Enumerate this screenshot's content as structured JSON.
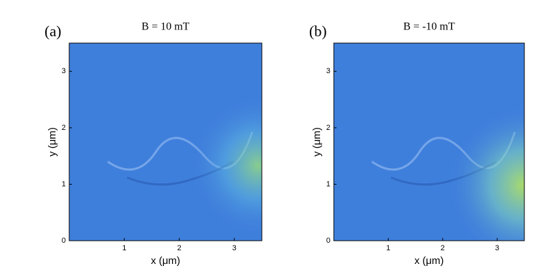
{
  "chart_data": [
    {
      "type": "image",
      "panel_label": "(a)",
      "title": "B = 10 mT",
      "xlabel": "x (μm)",
      "ylabel": "y (μm)",
      "xlim": [
        0,
        3.5
      ],
      "ylim": [
        0,
        3.5
      ],
      "xticks": [
        1,
        2,
        3
      ],
      "yticks": [
        0,
        1,
        2,
        3
      ]
    },
    {
      "type": "image",
      "panel_label": "(b)",
      "title": "B = -10 mT",
      "xlabel": "x (μm)",
      "ylabel": "y (μm)",
      "xlim": [
        0,
        3.5
      ],
      "ylim": [
        0,
        3.5
      ],
      "xticks": [
        1,
        2,
        3
      ],
      "yticks": [
        0,
        1,
        2,
        3
      ]
    }
  ]
}
